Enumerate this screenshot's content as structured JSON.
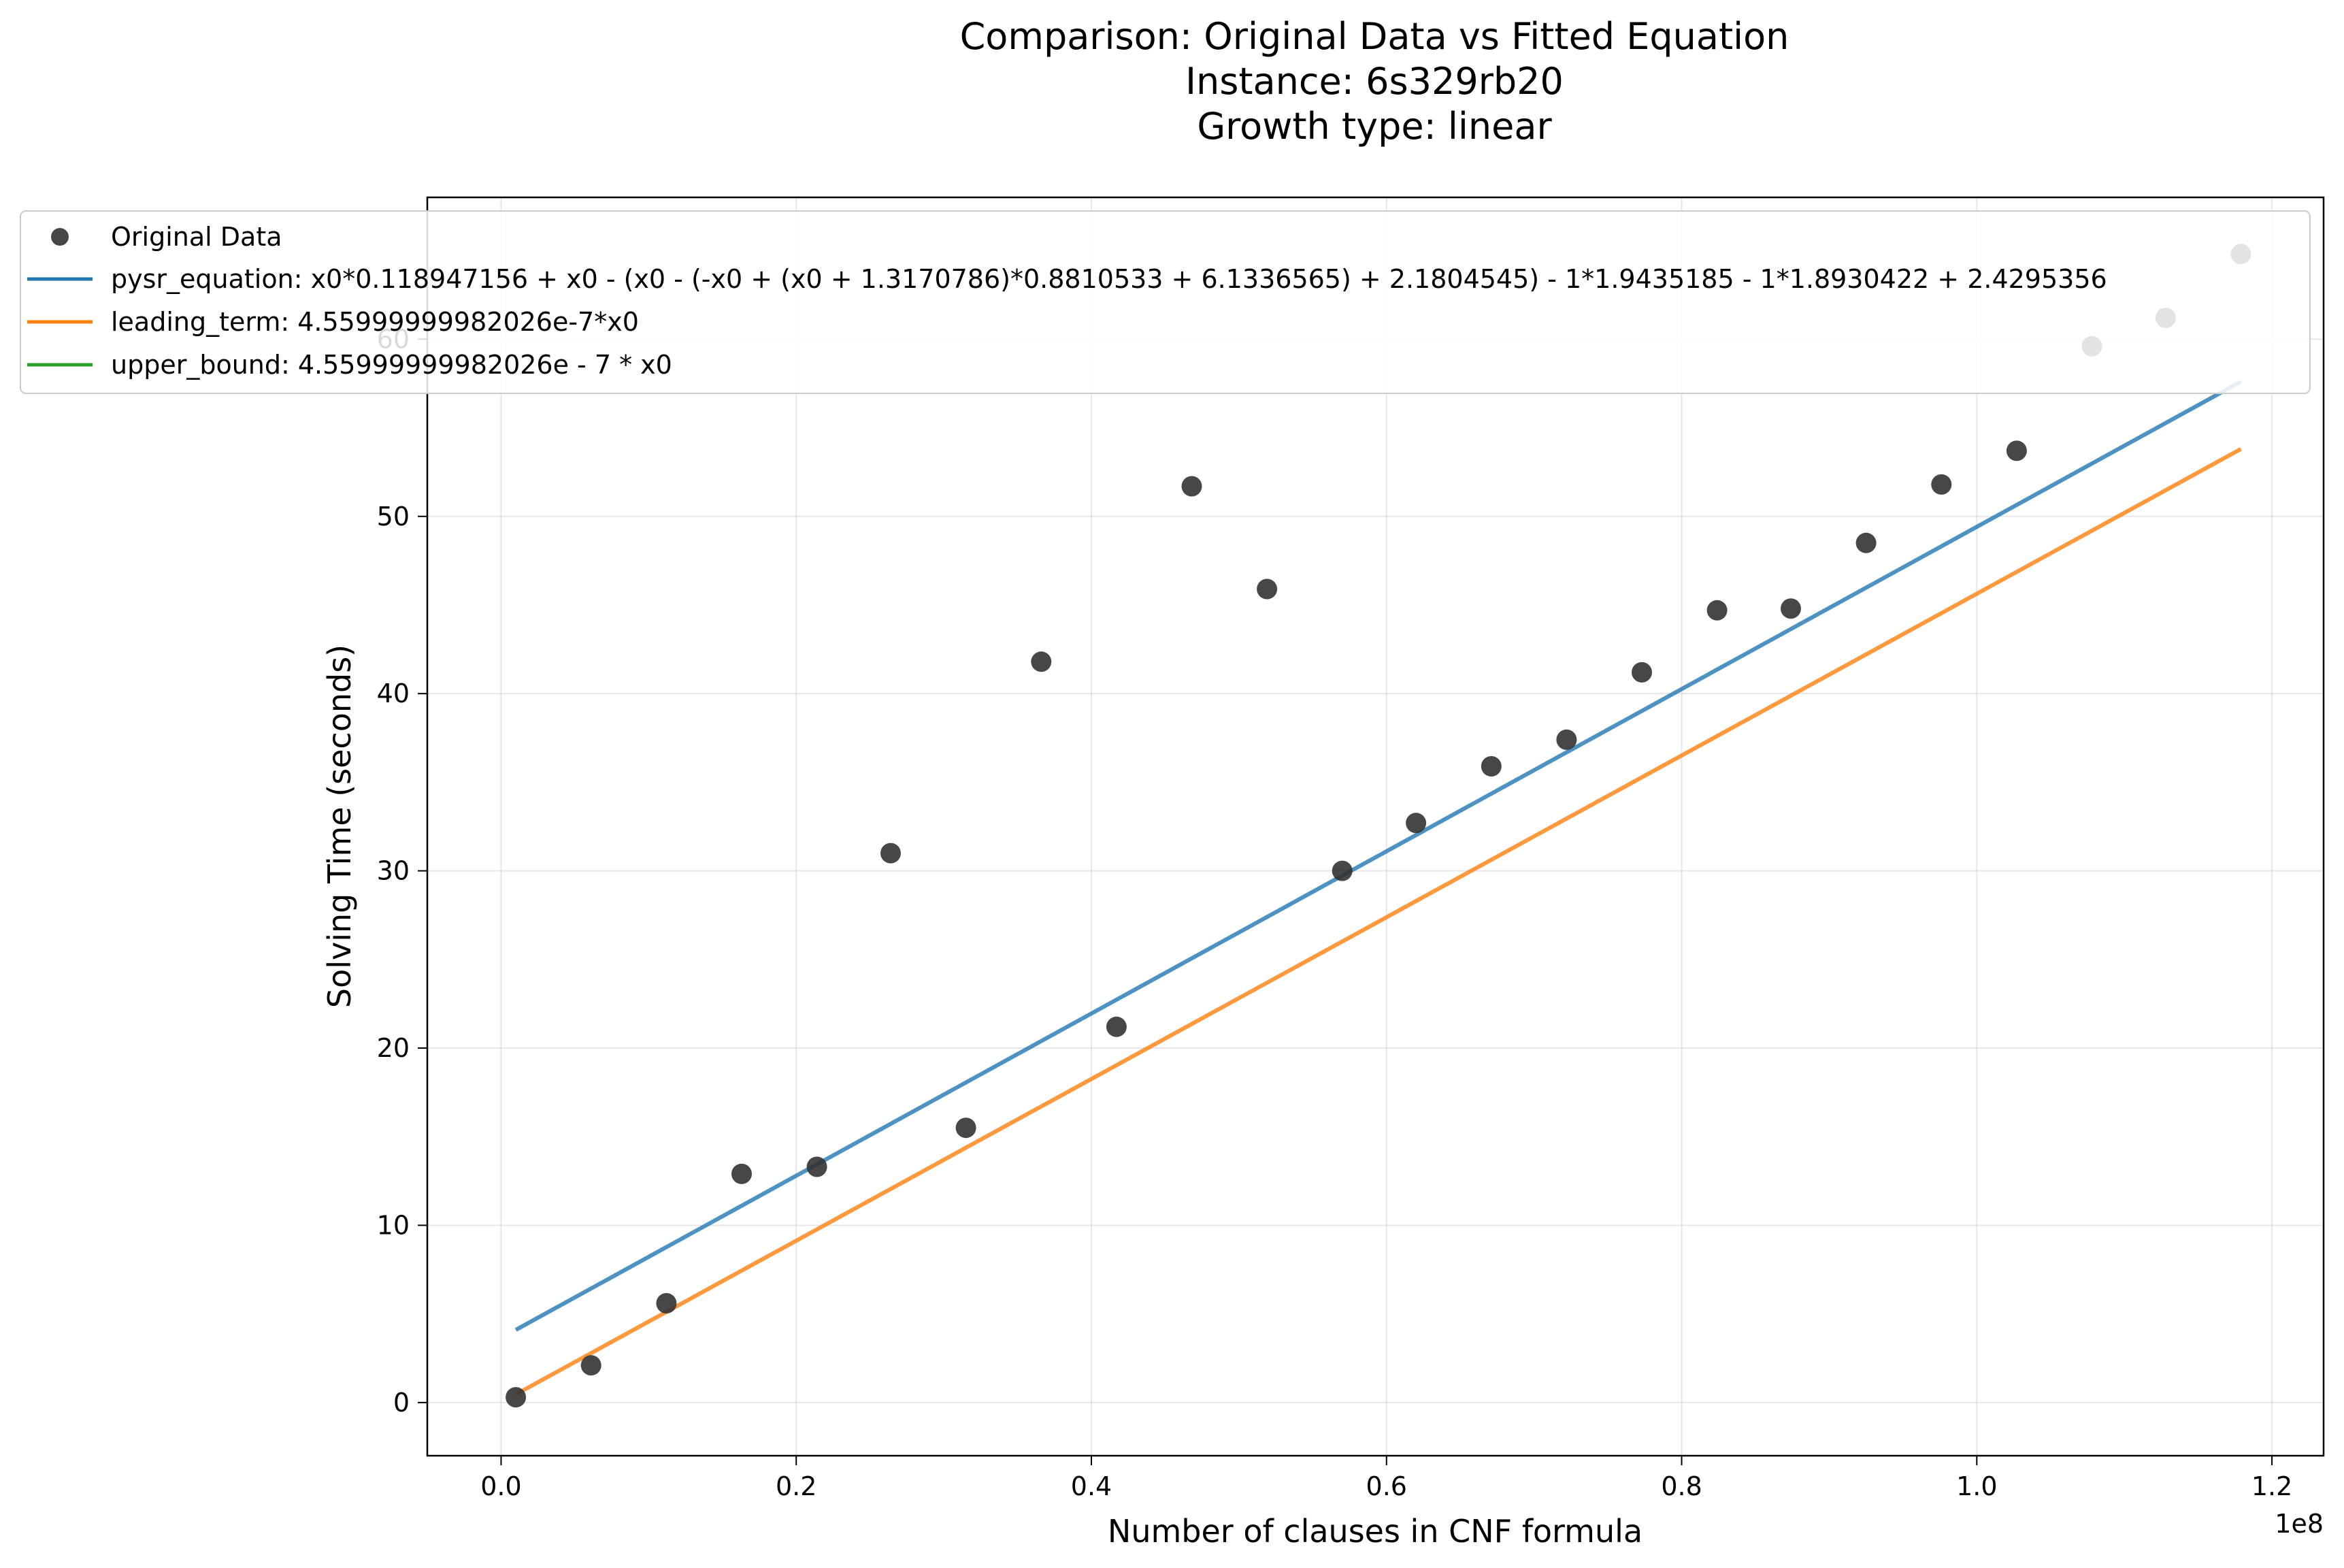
{
  "chart_data": {
    "type": "scatter",
    "title_lines": [
      "Comparison: Original Data vs Fitted Equation",
      "Instance: 6s329rb20",
      "Growth type: linear"
    ],
    "xlabel": "Number of clauses in CNF formula",
    "ylabel": "Solving Time (seconds)",
    "x_offset_label": "1e8",
    "xlim": [
      -0.05,
      1.235
    ],
    "ylim": [
      -3,
      68
    ],
    "x_ticks": [
      0.0,
      0.2,
      0.4,
      0.6,
      0.8,
      1.0,
      1.2
    ],
    "x_tick_labels": [
      "0.0",
      "0.2",
      "0.4",
      "0.6",
      "0.8",
      "1.0",
      "1.2"
    ],
    "y_ticks": [
      0,
      10,
      20,
      30,
      40,
      50,
      60
    ],
    "y_tick_labels": [
      "0",
      "10",
      "20",
      "30",
      "40",
      "50",
      "60"
    ],
    "grid": true,
    "legend_position": "top-left",
    "scatter": {
      "name": "Original Data",
      "color": "#333333",
      "x": [
        0.01,
        0.061,
        0.112,
        0.163,
        0.214,
        0.264,
        0.315,
        0.366,
        0.417,
        0.468,
        0.519,
        0.57,
        0.62,
        0.671,
        0.722,
        0.773,
        0.824,
        0.874,
        0.925,
        0.976,
        1.027,
        1.078,
        1.128,
        1.179
      ],
      "y": [
        0.3,
        2.1,
        5.6,
        12.9,
        13.3,
        31.0,
        15.5,
        41.8,
        21.2,
        51.7,
        45.9,
        30.0,
        32.7,
        35.9,
        37.4,
        41.2,
        44.7,
        44.8,
        48.5,
        51.8,
        53.7,
        59.6,
        61.2,
        64.8
      ]
    },
    "series": [
      {
        "name": "pysr_equation: x0*0.118947156 + x0 - (x0 - (-x0 + (x0 + 1.3170786)*0.8810533 + 6.1336565) + 2.1804545) - 1*1.9435185 - 1*1.8930422 + 2.4295356",
        "color": "#1f77b4",
        "x": [
          0.01,
          1.179
        ],
        "y": [
          4.1,
          57.6
        ]
      },
      {
        "name": "leading_term: 4.55999999982026e-7*x0",
        "color": "#ff7f0e",
        "x": [
          0.01,
          1.179
        ],
        "y": [
          0.46,
          53.8
        ]
      },
      {
        "name": "upper_bound: 4.55999999982026e - 7 * x0",
        "color": "#2ca02c",
        "x": [],
        "y": []
      }
    ]
  }
}
